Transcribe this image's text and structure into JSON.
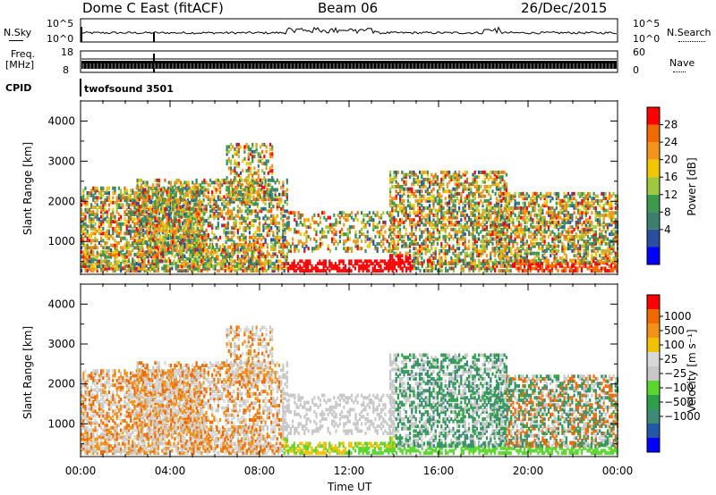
{
  "header": {
    "title_left": "Dome C East (fitACF)",
    "title_center": "Beam 06",
    "title_right": "26/Dec/2015"
  },
  "nsky_panel": {
    "left_label": "N.Sky",
    "left_ticks": [
      "10^5",
      "10^0"
    ],
    "right_label": "N.Search",
    "right_ticks": [
      "10^5",
      "10^0"
    ]
  },
  "freq_panel": {
    "left_label_line1": "Freq.",
    "left_label_line2": "[MHz]",
    "left_ticks": [
      "18",
      "8"
    ],
    "right_label": "Nave",
    "right_ticks": [
      "60",
      "0"
    ]
  },
  "cpid_panel": {
    "label": "CPID",
    "program": "twofsound 3501"
  },
  "colors": {
    "power_scale": [
      "#0000ff",
      "#2b4fa0",
      "#3d7f6e",
      "#3c9a4c",
      "#9ec93c",
      "#f2c700",
      "#f5941a",
      "#f06a00",
      "#ff0000"
    ],
    "velocity_scale": [
      "#0000ff",
      "#2358a7",
      "#3d8a75",
      "#2fa04a",
      "#5ad62e",
      "#c8c8c8",
      "#d8d8d8",
      "#f2c200",
      "#f29318",
      "#f06a00",
      "#ff0000"
    ]
  },
  "chart_data": [
    {
      "type": "heatmap",
      "name": "power",
      "ylabel": "Slant Range [km]",
      "ylim": [
        180,
        4500
      ],
      "y_ticks": [
        "4000",
        "3000",
        "2000",
        "1000"
      ],
      "xlim": [
        "00:00",
        "24:00"
      ],
      "colorbar_label": "Power [dB]",
      "colorbar_ticks": [
        "28",
        "24",
        "20",
        "16",
        "12",
        "8",
        "4"
      ]
    },
    {
      "type": "heatmap",
      "name": "velocity",
      "ylabel": "Slant Range [km]",
      "ylim": [
        180,
        4500
      ],
      "y_ticks": [
        "4000",
        "3000",
        "2000",
        "1000"
      ],
      "xlim": [
        "00:00",
        "24:00"
      ],
      "x_ticks": [
        "00:00",
        "04:00",
        "08:00",
        "12:00",
        "16:00",
        "20:00",
        "00:00"
      ],
      "xlabel": "Time UT",
      "colorbar_label": "Velocity [m s⁻¹]",
      "colorbar_ticks": [
        "1000",
        "500",
        "100",
        "25",
        "−25",
        "−100",
        "−500",
        "−1000"
      ]
    }
  ]
}
